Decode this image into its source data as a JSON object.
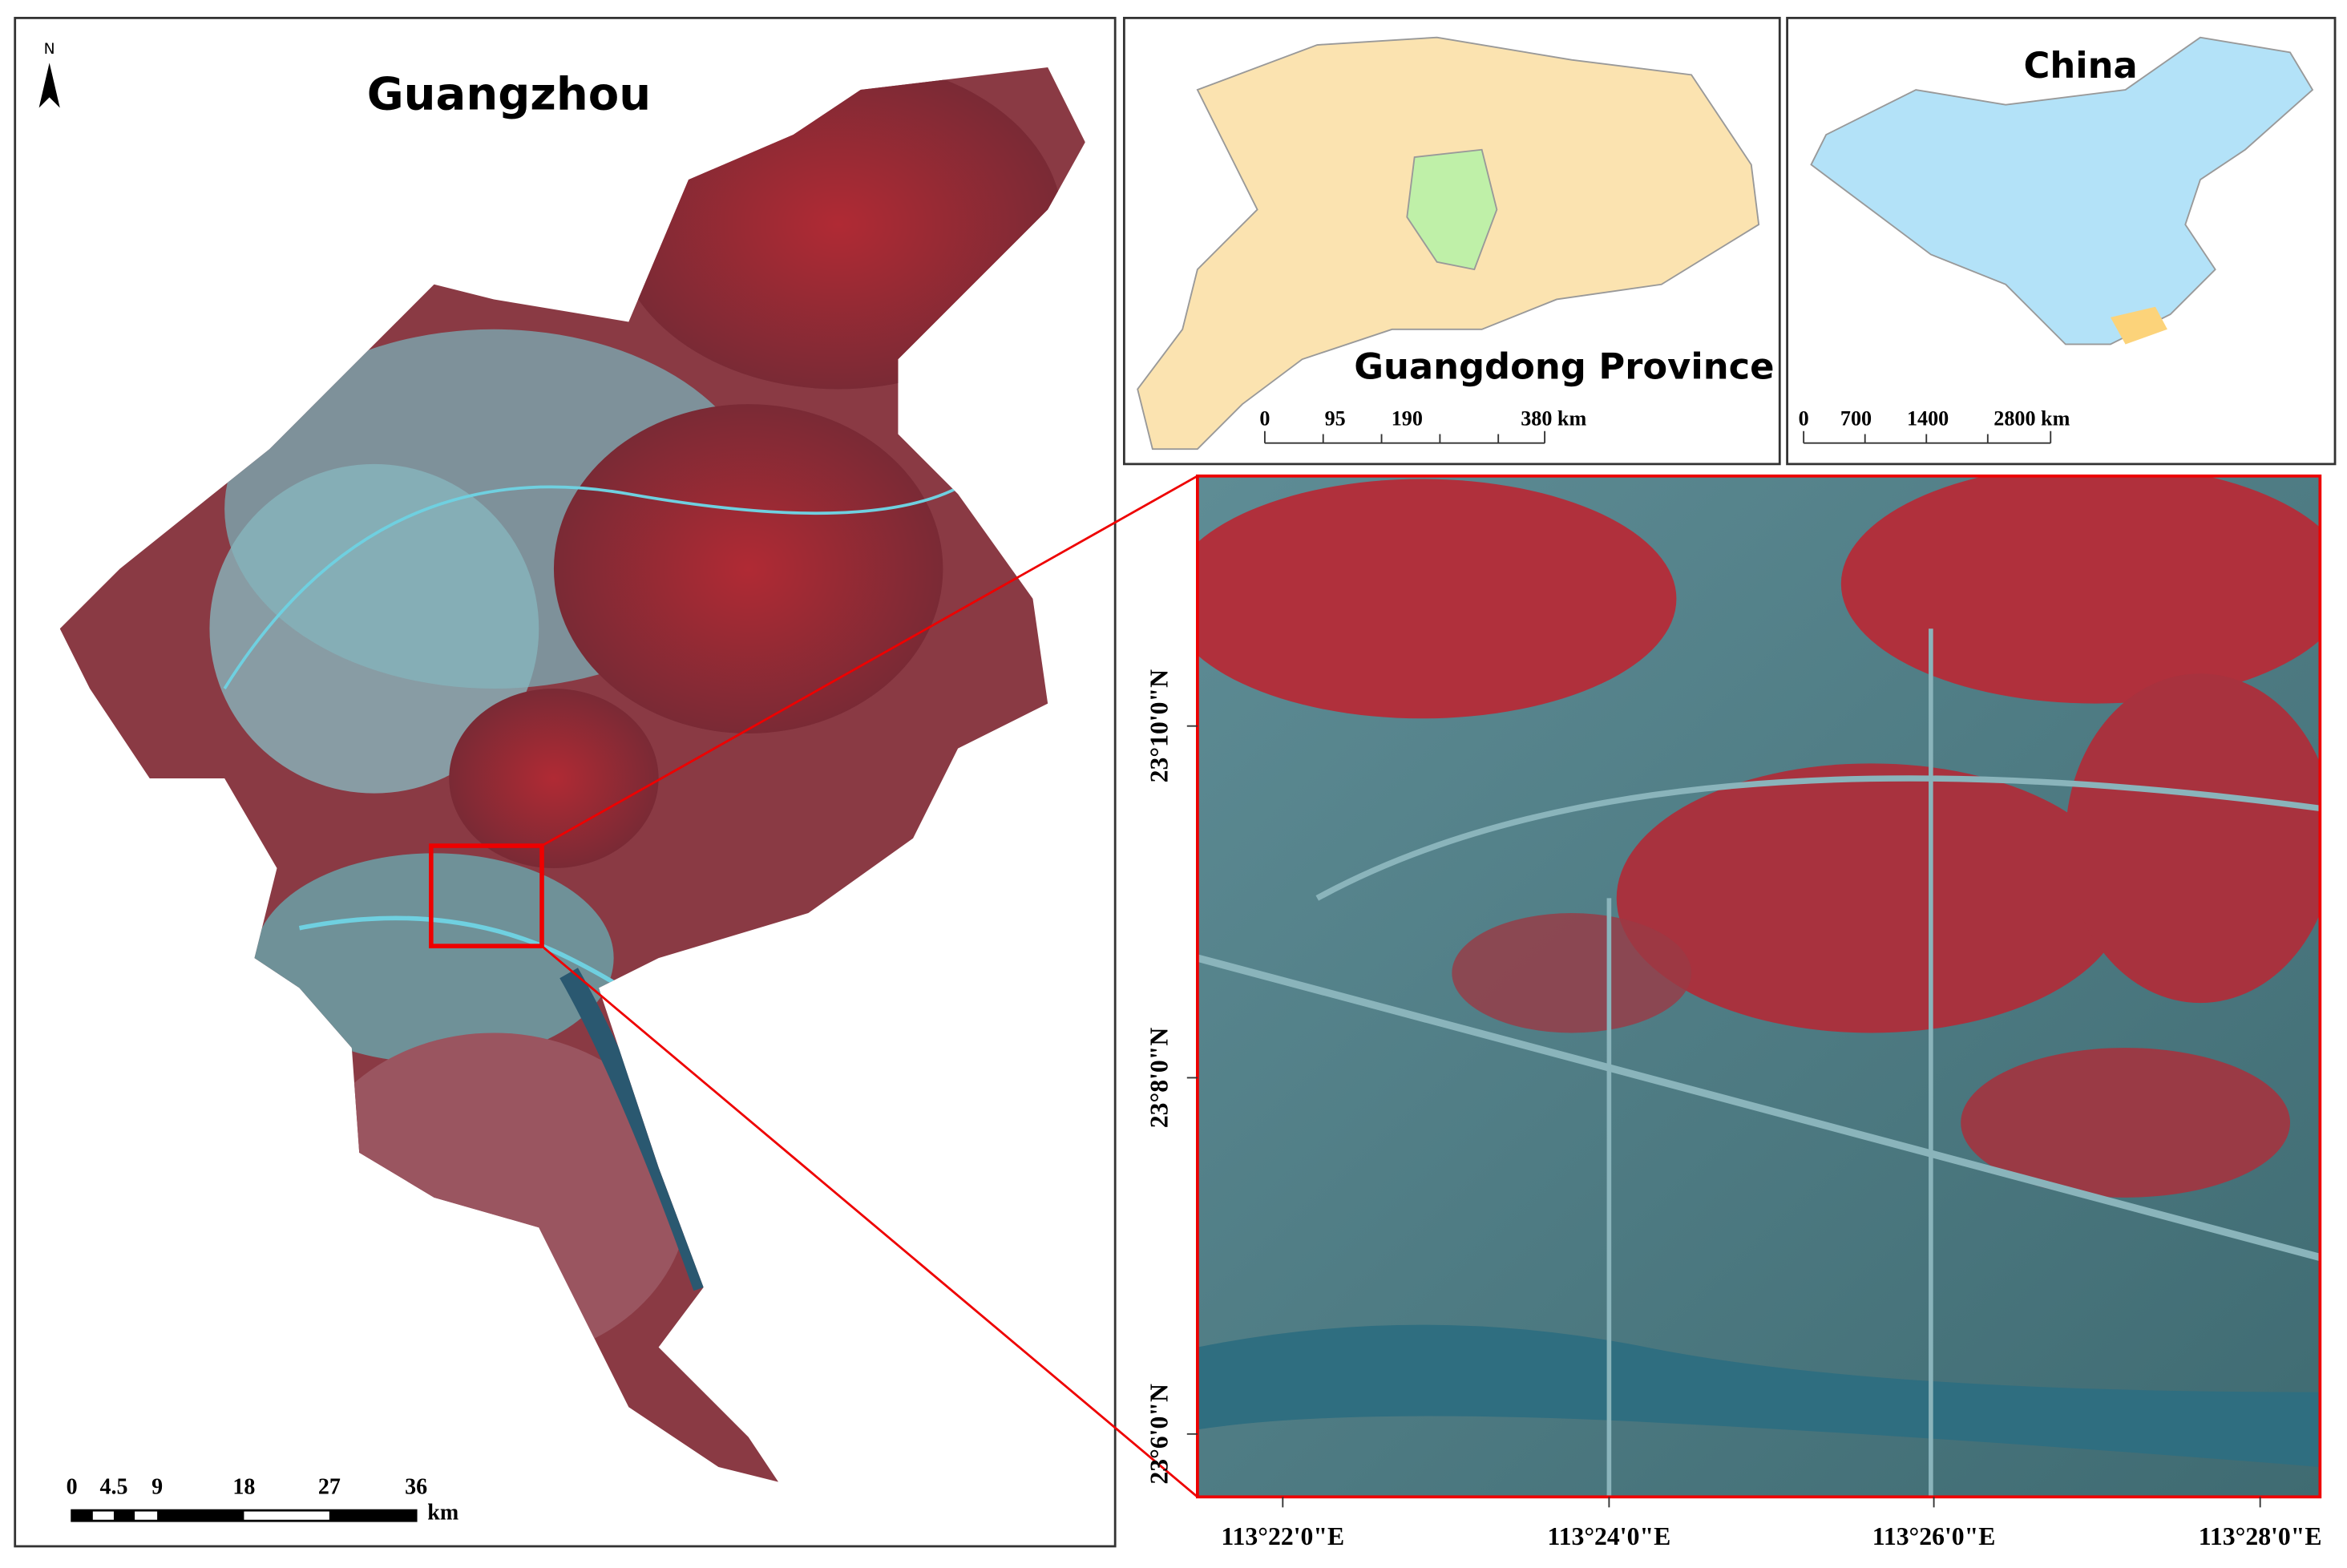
{
  "main_map": {
    "title": "Guangzhou",
    "north": "N",
    "scale": {
      "labels": [
        "0",
        "4.5",
        "9",
        "18",
        "27",
        "36"
      ],
      "unit": "km"
    }
  },
  "province_map": {
    "title": "Guangdong Province",
    "scale": {
      "labels": [
        "0",
        "95",
        "190",
        "380 km"
      ]
    }
  },
  "country_map": {
    "title": "China",
    "scale": {
      "labels": [
        "0",
        "700",
        "1400",
        "2800 km"
      ]
    }
  },
  "inset": {
    "lat_labels": [
      "23°10'0\"N",
      "23°8'0\"N",
      "23°6'0\"N"
    ],
    "lon_labels": [
      "113°22'0\"E",
      "113°24'0\"E",
      "113°26'0\"E",
      "113°28'0\"E"
    ]
  }
}
